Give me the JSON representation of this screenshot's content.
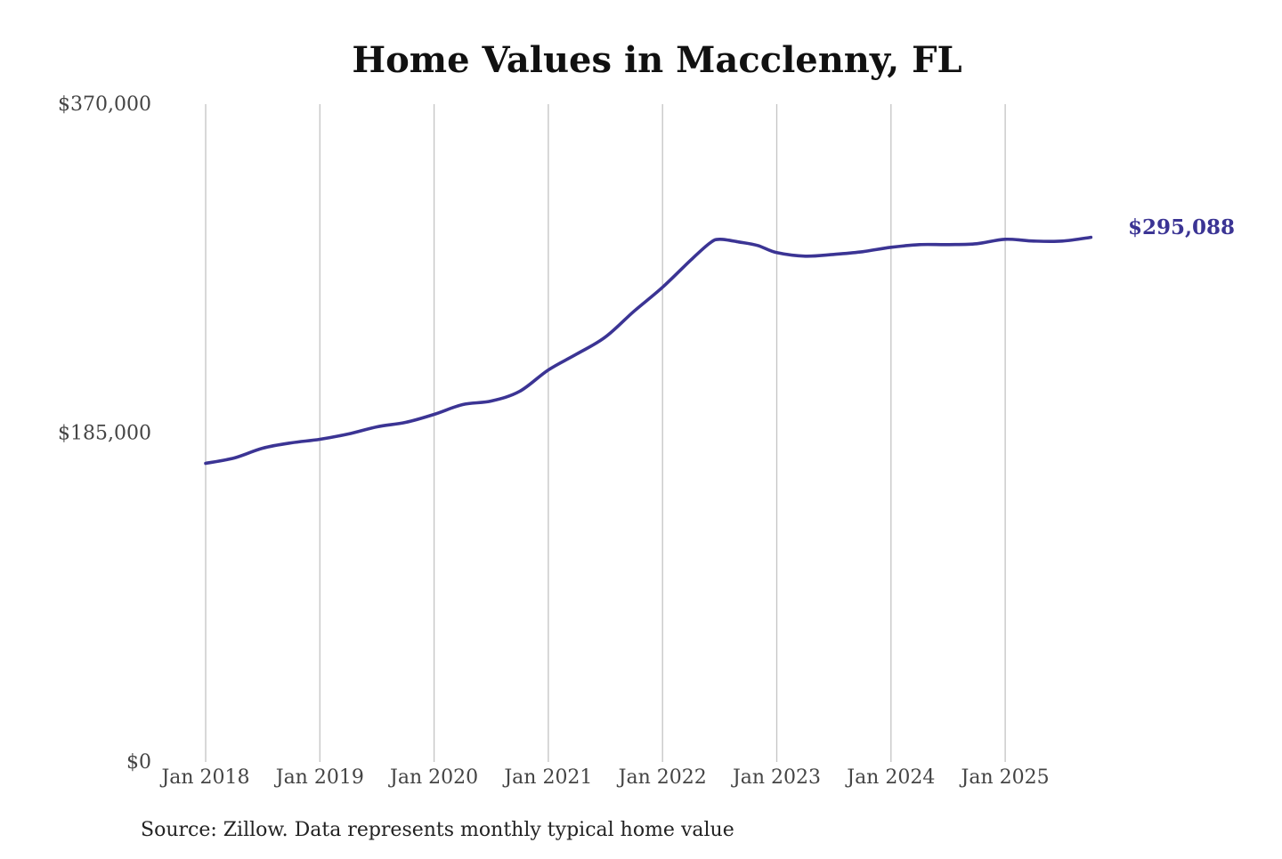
{
  "chart_data": {
    "type": "line",
    "title": "Home Values in Macclenny, FL",
    "source": "Source: Zillow. Data represents monthly typical home value",
    "xlabel": "",
    "ylabel": "",
    "ylim": [
      0,
      370000
    ],
    "y_ticks": [
      {
        "value": 0,
        "label": "$0"
      },
      {
        "value": 185000,
        "label": "$185,000"
      },
      {
        "value": 370000,
        "label": "$370,000"
      }
    ],
    "x_ticks": [
      {
        "value": "2018-01",
        "label": "Jan 2018"
      },
      {
        "value": "2019-01",
        "label": "Jan 2019"
      },
      {
        "value": "2020-01",
        "label": "Jan 2020"
      },
      {
        "value": "2021-01",
        "label": "Jan 2021"
      },
      {
        "value": "2022-01",
        "label": "Jan 2022"
      },
      {
        "value": "2023-01",
        "label": "Jan 2023"
      },
      {
        "value": "2024-01",
        "label": "Jan 2024"
      },
      {
        "value": "2025-01",
        "label": "Jan 2025"
      }
    ],
    "xlim": [
      "2018-01",
      "2025-12"
    ],
    "grid": {
      "vertical": true,
      "horizontal": false
    },
    "line_color": "#3b3494",
    "end_label": "$295,088",
    "series": [
      {
        "values": [
          {
            "x": "2018-01",
            "y": 168000
          },
          {
            "x": "2018-04",
            "y": 171000
          },
          {
            "x": "2018-07",
            "y": 176500
          },
          {
            "x": "2018-10",
            "y": 179500
          },
          {
            "x": "2019-01",
            "y": 181500
          },
          {
            "x": "2019-04",
            "y": 184500
          },
          {
            "x": "2019-07",
            "y": 188500
          },
          {
            "x": "2019-10",
            "y": 191000
          },
          {
            "x": "2020-01",
            "y": 195500
          },
          {
            "x": "2020-04",
            "y": 201000
          },
          {
            "x": "2020-07",
            "y": 203000
          },
          {
            "x": "2020-10",
            "y": 208500
          },
          {
            "x": "2021-01",
            "y": 220500
          },
          {
            "x": "2021-04",
            "y": 229500
          },
          {
            "x": "2021-07",
            "y": 239000
          },
          {
            "x": "2021-10",
            "y": 253500
          },
          {
            "x": "2022-01",
            "y": 267000
          },
          {
            "x": "2022-04",
            "y": 282500
          },
          {
            "x": "2022-06",
            "y": 292000
          },
          {
            "x": "2022-07",
            "y": 294000
          },
          {
            "x": "2022-09",
            "y": 292500
          },
          {
            "x": "2022-11",
            "y": 290500
          },
          {
            "x": "2023-01",
            "y": 286500
          },
          {
            "x": "2023-04",
            "y": 284500
          },
          {
            "x": "2023-07",
            "y": 285500
          },
          {
            "x": "2023-10",
            "y": 287000
          },
          {
            "x": "2024-01",
            "y": 289500
          },
          {
            "x": "2024-04",
            "y": 291000
          },
          {
            "x": "2024-07",
            "y": 291000
          },
          {
            "x": "2024-10",
            "y": 291500
          },
          {
            "x": "2025-01",
            "y": 294000
          },
          {
            "x": "2025-04",
            "y": 293000
          },
          {
            "x": "2025-07",
            "y": 293000
          },
          {
            "x": "2025-10",
            "y": 295088
          }
        ]
      }
    ]
  }
}
